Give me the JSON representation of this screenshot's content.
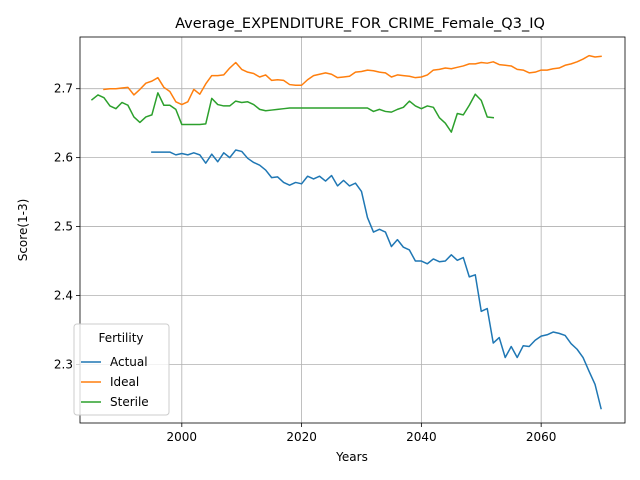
{
  "chart_data": {
    "type": "line",
    "title": "Average_EXPENDITURE_FOR_CRIME_Female_Q3_IQ",
    "xlabel": "Years",
    "ylabel": "Score(1-3)",
    "xlim": [
      2084,
      2075
    ],
    "x_range": [
      1983,
      2074
    ],
    "ylim": [
      2.215,
      2.775
    ],
    "xticks": [
      2000,
      2020,
      2040,
      2060
    ],
    "yticks": [
      2.3,
      2.4,
      2.5,
      2.6,
      2.7
    ],
    "xtick_labels": [
      "2000",
      "2020",
      "2040",
      "2060"
    ],
    "ytick_labels": [
      "2.3",
      "2.4",
      "2.5",
      "2.6",
      "2.7"
    ],
    "grid": true,
    "legend": {
      "title": "Fertility",
      "placement": "lower-left"
    },
    "series": [
      {
        "name": "Actual",
        "color": "#1f77b4",
        "x": [
          1995,
          1996,
          1997,
          1998,
          1999,
          2000,
          2001,
          2002,
          2003,
          2004,
          2005,
          2006,
          2007,
          2008,
          2009,
          2010,
          2011,
          2012,
          2013,
          2014,
          2015,
          2016,
          2017,
          2018,
          2019,
          2020,
          2021,
          2022,
          2023,
          2024,
          2025,
          2026,
          2027,
          2028,
          2029,
          2030,
          2031,
          2032,
          2033,
          2034,
          2035,
          2036,
          2037,
          2038,
          2039,
          2040,
          2041,
          2042,
          2043,
          2044,
          2045,
          2046,
          2047,
          2048,
          2049,
          2050,
          2051,
          2052,
          2053,
          2054,
          2055,
          2056,
          2057,
          2058,
          2059,
          2060,
          2061,
          2062,
          2063,
          2064,
          2065,
          2066,
          2067,
          2068,
          2069,
          2070
        ],
        "y": [
          2.608,
          2.608,
          2.608,
          2.608,
          2.604,
          2.606,
          2.604,
          2.607,
          2.604,
          2.592,
          2.605,
          2.594,
          2.607,
          2.6,
          2.611,
          2.609,
          2.599,
          2.593,
          2.589,
          2.582,
          2.571,
          2.572,
          2.564,
          2.56,
          2.564,
          2.562,
          2.573,
          2.569,
          2.573,
          2.566,
          2.574,
          2.559,
          2.567,
          2.559,
          2.563,
          2.551,
          2.513,
          2.492,
          2.496,
          2.492,
          2.471,
          2.481,
          2.47,
          2.466,
          2.45,
          2.45,
          2.446,
          2.453,
          2.449,
          2.45,
          2.459,
          2.451,
          2.455,
          2.427,
          2.43,
          2.377,
          2.381,
          2.331,
          2.339,
          2.31,
          2.326,
          2.31,
          2.327,
          2.326,
          2.335,
          2.341,
          2.343,
          2.347,
          2.345,
          2.342,
          2.33,
          2.322,
          2.31,
          2.29,
          2.271,
          2.236
        ]
      },
      {
        "name": "Ideal",
        "color": "#ff7f0e",
        "x": [
          1987,
          1988,
          1989,
          1990,
          1991,
          1992,
          1993,
          1994,
          1995,
          1996,
          1997,
          1998,
          1999,
          2000,
          2001,
          2002,
          2003,
          2004,
          2005,
          2006,
          2007,
          2008,
          2009,
          2010,
          2011,
          2012,
          2013,
          2014,
          2015,
          2016,
          2017,
          2018,
          2019,
          2020,
          2021,
          2022,
          2023,
          2024,
          2025,
          2026,
          2027,
          2028,
          2029,
          2030,
          2031,
          2032,
          2033,
          2034,
          2035,
          2036,
          2037,
          2038,
          2039,
          2040,
          2041,
          2042,
          2043,
          2044,
          2045,
          2046,
          2047,
          2048,
          2049,
          2050,
          2051,
          2052,
          2053,
          2054,
          2055,
          2056,
          2057,
          2058,
          2059,
          2060,
          2061,
          2062,
          2063,
          2064,
          2065,
          2066,
          2067,
          2068,
          2069,
          2070
        ],
        "y": [
          2.699,
          2.7,
          2.7,
          2.701,
          2.702,
          2.691,
          2.699,
          2.708,
          2.711,
          2.716,
          2.702,
          2.696,
          2.681,
          2.677,
          2.681,
          2.699,
          2.692,
          2.707,
          2.719,
          2.719,
          2.72,
          2.73,
          2.738,
          2.728,
          2.724,
          2.722,
          2.717,
          2.72,
          2.712,
          2.713,
          2.712,
          2.706,
          2.705,
          2.705,
          2.713,
          2.719,
          2.721,
          2.723,
          2.721,
          2.716,
          2.717,
          2.718,
          2.724,
          2.725,
          2.727,
          2.726,
          2.724,
          2.723,
          2.717,
          2.72,
          2.719,
          2.718,
          2.716,
          2.717,
          2.72,
          2.727,
          2.728,
          2.73,
          2.729,
          2.731,
          2.733,
          2.736,
          2.736,
          2.738,
          2.737,
          2.739,
          2.735,
          2.734,
          2.733,
          2.728,
          2.727,
          2.723,
          2.724,
          2.727,
          2.727,
          2.729,
          2.73,
          2.734,
          2.736,
          2.739,
          2.743,
          2.748,
          2.746,
          2.747
        ]
      },
      {
        "name": "Sterile",
        "color": "#2ca02c",
        "x": [
          1985,
          1986,
          1987,
          1988,
          1989,
          1990,
          1991,
          1992,
          1993,
          1994,
          1995,
          1996,
          1997,
          1998,
          1999,
          2000,
          2001,
          2002,
          2003,
          2004,
          2005,
          2006,
          2007,
          2008,
          2009,
          2010,
          2011,
          2012,
          2013,
          2014,
          2015,
          2016,
          2017,
          2018,
          2019,
          2020,
          2021,
          2022,
          2023,
          2024,
          2025,
          2026,
          2027,
          2028,
          2029,
          2030,
          2031,
          2032,
          2033,
          2034,
          2035,
          2036,
          2037,
          2038,
          2039,
          2040,
          2041,
          2042,
          2043,
          2044,
          2045,
          2046,
          2047,
          2048,
          2049,
          2050,
          2051,
          2052
        ],
        "y": [
          2.684,
          2.691,
          2.687,
          2.675,
          2.671,
          2.68,
          2.676,
          2.659,
          2.651,
          2.659,
          2.662,
          2.694,
          2.676,
          2.676,
          2.67,
          2.648,
          2.648,
          2.648,
          2.648,
          2.649,
          2.686,
          2.677,
          2.675,
          2.675,
          2.682,
          2.68,
          2.681,
          2.677,
          2.67,
          2.668,
          2.669,
          2.67,
          2.671,
          2.672,
          2.672,
          2.672,
          2.672,
          2.672,
          2.672,
          2.672,
          2.672,
          2.672,
          2.672,
          2.672,
          2.672,
          2.672,
          2.672,
          2.667,
          2.67,
          2.667,
          2.666,
          2.67,
          2.673,
          2.682,
          2.675,
          2.671,
          2.675,
          2.673,
          2.658,
          2.65,
          2.637,
          2.664,
          2.662,
          2.676,
          2.692,
          2.683,
          2.659,
          2.658
        ]
      }
    ]
  }
}
